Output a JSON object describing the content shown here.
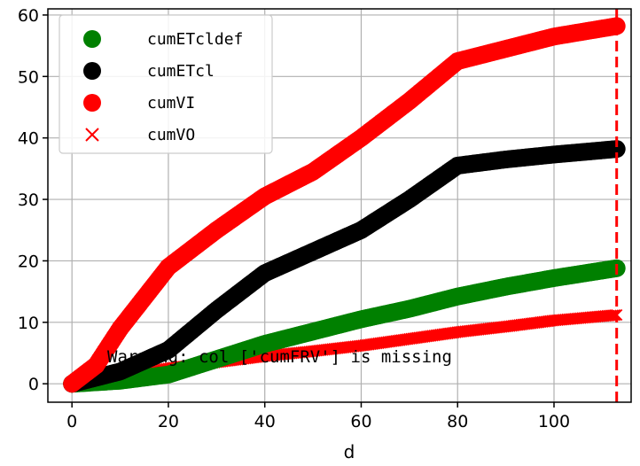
{
  "chart_data": {
    "type": "scatter",
    "title": "",
    "xlabel": "d",
    "ylabel": "",
    "xlim": [
      -5,
      116
    ],
    "ylim": [
      -3,
      61
    ],
    "xticks": [
      0,
      20,
      40,
      60,
      80,
      100
    ],
    "yticks": [
      0,
      10,
      20,
      30,
      40,
      50,
      60
    ],
    "xtick_labels": [
      "0",
      "20",
      "40",
      "60",
      "80",
      "100"
    ],
    "ytick_labels": [
      "0",
      "10",
      "20",
      "30",
      "40",
      "50",
      "60"
    ],
    "grid": true,
    "legend_position": "top-left",
    "vline": {
      "x": 113,
      "color": "#ff0000",
      "style": "dashed"
    },
    "annotation": "Warning: col ['cumFRV'] is missing",
    "series": [
      {
        "name": "cumETcldef",
        "marker": "circle",
        "color": "#008000",
        "points": [
          [
            0,
            0
          ],
          [
            10,
            0.5
          ],
          [
            20,
            1.5
          ],
          [
            30,
            4
          ],
          [
            40,
            6.5
          ],
          [
            50,
            8.5
          ],
          [
            60,
            10.5
          ],
          [
            70,
            12.2
          ],
          [
            80,
            14.2
          ],
          [
            90,
            15.8
          ],
          [
            100,
            17.2
          ],
          [
            113,
            18.8
          ]
        ]
      },
      {
        "name": "cumETcl",
        "marker": "circle",
        "color": "#000000",
        "points": [
          [
            0,
            0
          ],
          [
            10,
            2
          ],
          [
            20,
            5.5
          ],
          [
            30,
            12
          ],
          [
            40,
            18
          ],
          [
            50,
            21.5
          ],
          [
            60,
            25
          ],
          [
            70,
            30
          ],
          [
            80,
            35.5
          ],
          [
            90,
            36.5
          ],
          [
            100,
            37.3
          ],
          [
            113,
            38.2
          ]
        ]
      },
      {
        "name": "cumVI",
        "marker": "circle",
        "color": "#ff0000",
        "points": [
          [
            0,
            0
          ],
          [
            5,
            3
          ],
          [
            10,
            9
          ],
          [
            20,
            19
          ],
          [
            30,
            25
          ],
          [
            40,
            30.5
          ],
          [
            50,
            34.5
          ],
          [
            60,
            40
          ],
          [
            70,
            46
          ],
          [
            80,
            52.5
          ],
          [
            90,
            54.5
          ],
          [
            100,
            56.5
          ],
          [
            113,
            58.2
          ]
        ]
      },
      {
        "name": "cumVO",
        "marker": "x",
        "color": "#ff0000",
        "points": [
          [
            0,
            0
          ],
          [
            10,
            1
          ],
          [
            20,
            2.5
          ],
          [
            30,
            3.5
          ],
          [
            40,
            4.5
          ],
          [
            50,
            5.3
          ],
          [
            60,
            6.2
          ],
          [
            70,
            7.3
          ],
          [
            80,
            8.4
          ],
          [
            90,
            9.3
          ],
          [
            100,
            10.3
          ],
          [
            113,
            11.2
          ]
        ]
      }
    ]
  }
}
